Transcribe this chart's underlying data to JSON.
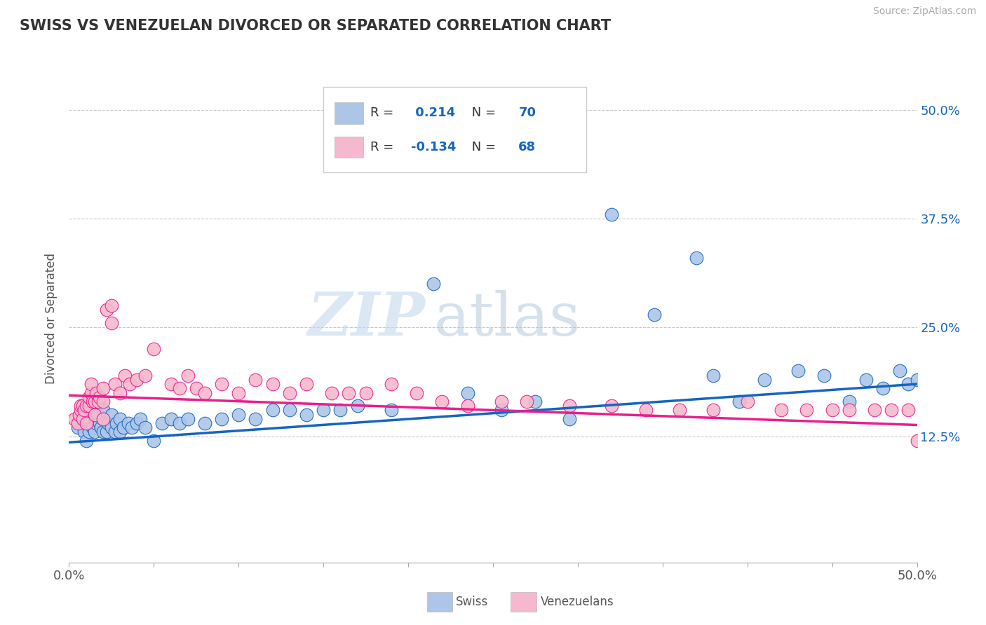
{
  "title": "SWISS VS VENEZUELAN DIVORCED OR SEPARATED CORRELATION CHART",
  "source": "Source: ZipAtlas.com",
  "ylabel": "Divorced or Separated",
  "xlim": [
    0.0,
    0.5
  ],
  "ylim": [
    -0.02,
    0.54
  ],
  "yticks": [
    0.125,
    0.25,
    0.375,
    0.5
  ],
  "ytick_labels": [
    "12.5%",
    "25.0%",
    "37.5%",
    "50.0%"
  ],
  "swiss_color": "#adc6e8",
  "venezuelan_color": "#f5b8ce",
  "swiss_line_color": "#1565c0",
  "venezuelan_line_color": "#e91e8c",
  "swiss_R": 0.214,
  "swiss_N": 70,
  "venezuelan_R": -0.134,
  "venezuelan_N": 68,
  "watermark_zip": "ZIP",
  "watermark_atlas": "atlas",
  "legend_labels": [
    "Swiss",
    "Venezuelans"
  ],
  "swiss_x": [
    0.005,
    0.007,
    0.008,
    0.009,
    0.01,
    0.01,
    0.01,
    0.012,
    0.013,
    0.013,
    0.014,
    0.015,
    0.015,
    0.015,
    0.016,
    0.017,
    0.018,
    0.019,
    0.02,
    0.02,
    0.02,
    0.022,
    0.023,
    0.025,
    0.025,
    0.027,
    0.028,
    0.03,
    0.03,
    0.032,
    0.035,
    0.037,
    0.04,
    0.042,
    0.045,
    0.05,
    0.055,
    0.06,
    0.065,
    0.07,
    0.08,
    0.09,
    0.1,
    0.11,
    0.12,
    0.13,
    0.14,
    0.15,
    0.16,
    0.17,
    0.19,
    0.215,
    0.235,
    0.255,
    0.275,
    0.295,
    0.32,
    0.345,
    0.37,
    0.38,
    0.395,
    0.41,
    0.43,
    0.445,
    0.46,
    0.47,
    0.48,
    0.49,
    0.495,
    0.5
  ],
  "swiss_y": [
    0.135,
    0.14,
    0.145,
    0.13,
    0.12,
    0.14,
    0.155,
    0.13,
    0.14,
    0.15,
    0.135,
    0.13,
    0.145,
    0.16,
    0.14,
    0.15,
    0.14,
    0.135,
    0.13,
    0.145,
    0.155,
    0.13,
    0.14,
    0.135,
    0.15,
    0.13,
    0.14,
    0.13,
    0.145,
    0.135,
    0.14,
    0.135,
    0.14,
    0.145,
    0.135,
    0.12,
    0.14,
    0.145,
    0.14,
    0.145,
    0.14,
    0.145,
    0.15,
    0.145,
    0.155,
    0.155,
    0.15,
    0.155,
    0.155,
    0.16,
    0.155,
    0.3,
    0.175,
    0.155,
    0.165,
    0.145,
    0.38,
    0.265,
    0.33,
    0.195,
    0.165,
    0.19,
    0.2,
    0.195,
    0.165,
    0.19,
    0.18,
    0.2,
    0.185,
    0.19
  ],
  "venezuelan_x": [
    0.003,
    0.005,
    0.006,
    0.007,
    0.007,
    0.008,
    0.008,
    0.009,
    0.01,
    0.01,
    0.012,
    0.012,
    0.013,
    0.013,
    0.014,
    0.015,
    0.015,
    0.016,
    0.017,
    0.018,
    0.02,
    0.02,
    0.02,
    0.022,
    0.025,
    0.025,
    0.027,
    0.03,
    0.033,
    0.036,
    0.04,
    0.045,
    0.05,
    0.06,
    0.065,
    0.07,
    0.075,
    0.08,
    0.09,
    0.1,
    0.11,
    0.12,
    0.13,
    0.14,
    0.155,
    0.165,
    0.175,
    0.19,
    0.205,
    0.22,
    0.235,
    0.255,
    0.27,
    0.295,
    0.32,
    0.34,
    0.36,
    0.38,
    0.4,
    0.42,
    0.435,
    0.45,
    0.46,
    0.475,
    0.485,
    0.495,
    0.5,
    0.505
  ],
  "venezuelan_y": [
    0.145,
    0.14,
    0.15,
    0.155,
    0.16,
    0.145,
    0.16,
    0.155,
    0.14,
    0.16,
    0.16,
    0.17,
    0.175,
    0.185,
    0.165,
    0.15,
    0.165,
    0.175,
    0.165,
    0.17,
    0.145,
    0.165,
    0.18,
    0.27,
    0.255,
    0.275,
    0.185,
    0.175,
    0.195,
    0.185,
    0.19,
    0.195,
    0.225,
    0.185,
    0.18,
    0.195,
    0.18,
    0.175,
    0.185,
    0.175,
    0.19,
    0.185,
    0.175,
    0.185,
    0.175,
    0.175,
    0.175,
    0.185,
    0.175,
    0.165,
    0.16,
    0.165,
    0.165,
    0.16,
    0.16,
    0.155,
    0.155,
    0.155,
    0.165,
    0.155,
    0.155,
    0.155,
    0.155,
    0.155,
    0.155,
    0.155,
    0.12,
    0.095
  ],
  "swiss_trend_x": [
    0.0,
    0.5
  ],
  "swiss_trend_y": [
    0.118,
    0.185
  ],
  "venezuelan_trend_x": [
    0.0,
    0.5
  ],
  "venezuelan_trend_y": [
    0.172,
    0.138
  ]
}
